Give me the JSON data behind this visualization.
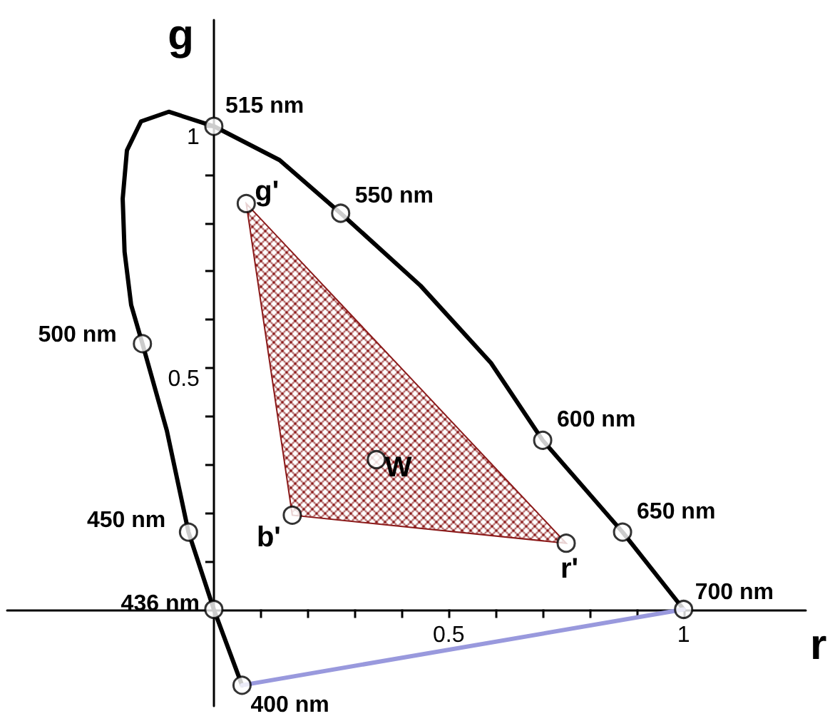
{
  "chart_data": {
    "type": "line",
    "xlabel": "r",
    "ylabel": "g",
    "xlim": [
      -0.44,
      1.26
    ],
    "ylim": [
      -0.2,
      1.22
    ],
    "xticks": [
      {
        "value": 0.1,
        "label": null
      },
      {
        "value": 0.2,
        "label": null
      },
      {
        "value": 0.3,
        "label": null
      },
      {
        "value": 0.4,
        "label": null
      },
      0.5,
      {
        "value": 0.6,
        "label": null
      },
      {
        "value": 0.7,
        "label": null
      },
      {
        "value": 0.8,
        "label": null
      },
      {
        "value": 0.9,
        "label": null
      },
      1
    ],
    "yticks": [
      {
        "value": 0.1,
        "label": null
      },
      {
        "value": 0.2,
        "label": null
      },
      {
        "value": 0.3,
        "label": null
      },
      {
        "value": 0.4,
        "label": null
      },
      0.5,
      {
        "value": 0.6,
        "label": null
      },
      {
        "value": 0.7,
        "label": null
      },
      {
        "value": 0.8,
        "label": null
      },
      {
        "value": 0.9,
        "label": null
      },
      1
    ],
    "grid": false,
    "series": [
      {
        "type": "line",
        "color": "#000000",
        "line_style": "solid",
        "marker": "none",
        "x": [
          0.06,
          0,
          -0.054,
          -0.1,
          -0.152,
          -0.176,
          -0.19,
          -0.194,
          -0.185,
          -0.155,
          -0.096,
          0,
          0.14,
          0.27,
          0.44,
          0.59,
          0.7,
          0.87,
          1.0
        ],
        "values": [
          -0.157,
          0,
          0.16,
          0.37,
          0.55,
          0.63,
          0.74,
          0.85,
          0.95,
          1.01,
          1.03,
          1.0,
          0.93,
          0.82,
          0.67,
          0.51,
          0.35,
          0.16,
          0
        ]
      },
      {
        "type": "line",
        "color": "#9999dd",
        "line_style": "solid",
        "marker": "none",
        "x": [
          0.06,
          1.0
        ],
        "values": [
          -0.157,
          0
        ]
      },
      {
        "type": "area",
        "color": "#8b1a1a",
        "x": [
          0.069,
          0.167,
          0.75
        ],
        "values": [
          0.84,
          0.195,
          0.137
        ]
      },
      {
        "type": "scatter",
        "color": "#000000",
        "marker": "circle",
        "x": [
          0,
          0.27,
          0.7,
          0.87,
          1.0,
          -0.152,
          -0.054,
          0,
          0.06,
          0.069,
          0.167,
          0.75,
          0.346
        ],
        "values": [
          1.0,
          0.82,
          0.35,
          0.16,
          0,
          0.55,
          0.16,
          0,
          -0.157,
          0.84,
          0.195,
          0.137,
          0.31
        ]
      }
    ],
    "annotations": [
      {
        "text": "515 nm",
        "x": 0,
        "y": 1.0
      },
      {
        "text": "550 nm",
        "x": 0.27,
        "y": 0.82
      },
      {
        "text": "600 nm",
        "x": 0.7,
        "y": 0.35
      },
      {
        "text": "650 nm",
        "x": 0.87,
        "y": 0.16
      },
      {
        "text": "700 nm",
        "x": 1.0,
        "y": 0
      },
      {
        "text": "500 nm",
        "x": -0.152,
        "y": 0.55
      },
      {
        "text": "450 nm",
        "x": -0.054,
        "y": 0.16
      },
      {
        "text": "436 nm",
        "x": 0,
        "y": 0
      },
      {
        "text": "400 nm",
        "x": 0.06,
        "y": -0.157
      },
      {
        "text": "g'",
        "x": 0.069,
        "y": 0.84
      },
      {
        "text": "b'",
        "x": 0.167,
        "y": 0.195
      },
      {
        "text": "r'",
        "x": 0.75,
        "y": 0.137
      },
      {
        "text": "W",
        "x": 0.346,
        "y": 0.31
      }
    ]
  }
}
